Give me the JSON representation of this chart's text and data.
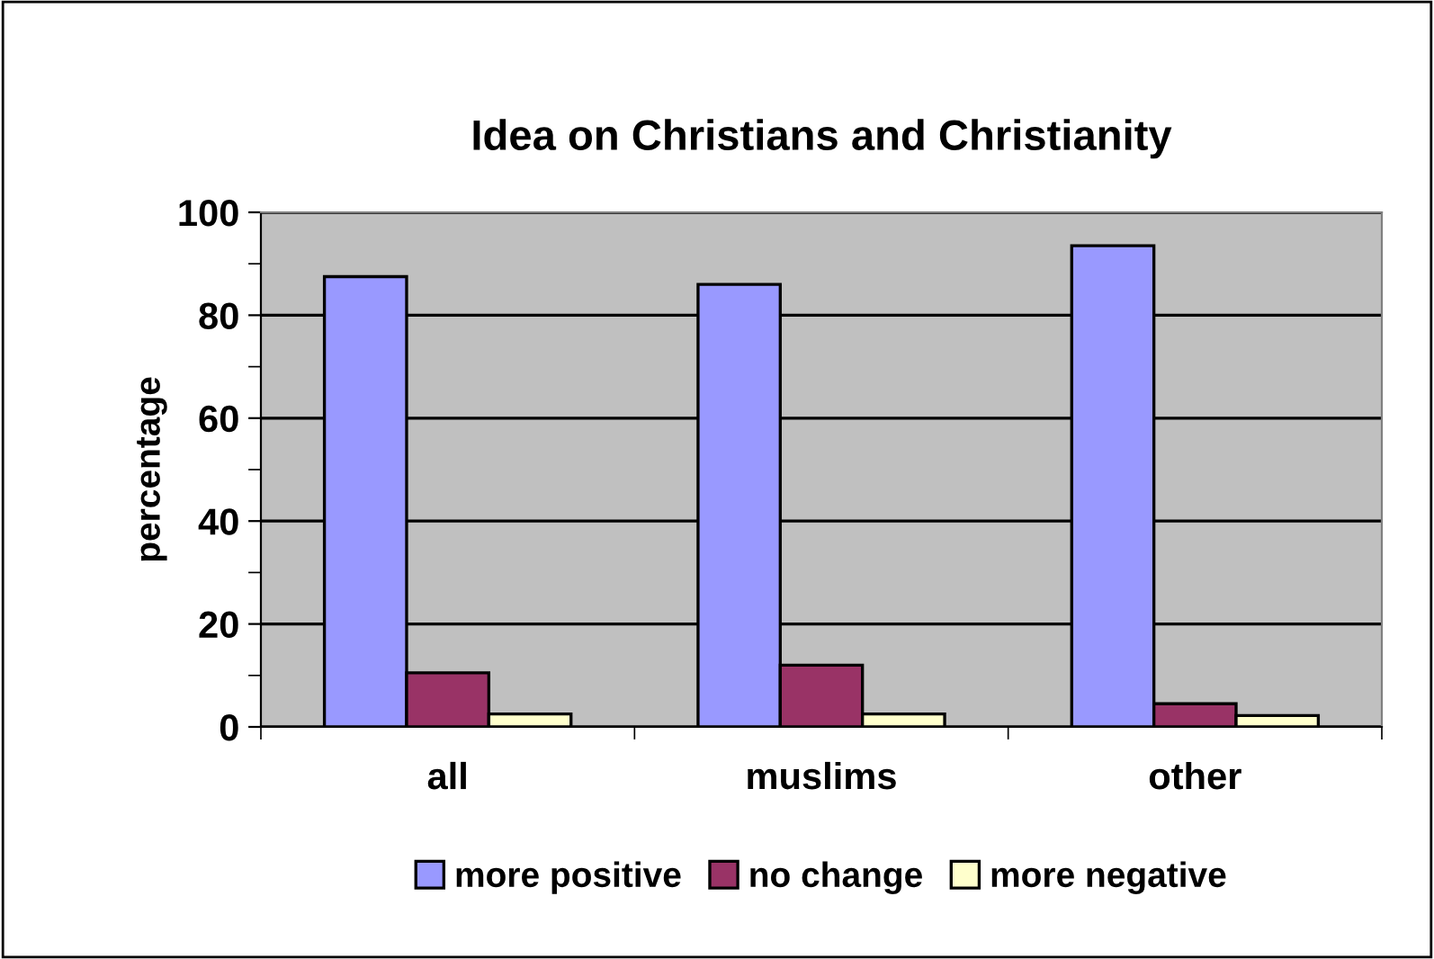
{
  "chart_data": {
    "type": "bar",
    "title": "Idea on Christians and Christianity",
    "ylabel": "percentage",
    "categories": [
      "all",
      "muslims",
      "other"
    ],
    "series": [
      {
        "name": "more positive",
        "color": "#9999ff",
        "values": [
          87.5,
          86,
          93.5
        ]
      },
      {
        "name": "no change",
        "color": "#993366",
        "values": [
          10.5,
          12,
          4.5
        ]
      },
      {
        "name": "more negative",
        "color": "#ffffcc",
        "values": [
          2.5,
          2.5,
          2.2
        ]
      }
    ],
    "ylim": [
      0,
      100
    ],
    "yticks": [
      0,
      20,
      40,
      60,
      80,
      100
    ],
    "grid": "y",
    "legend": "bottom"
  }
}
